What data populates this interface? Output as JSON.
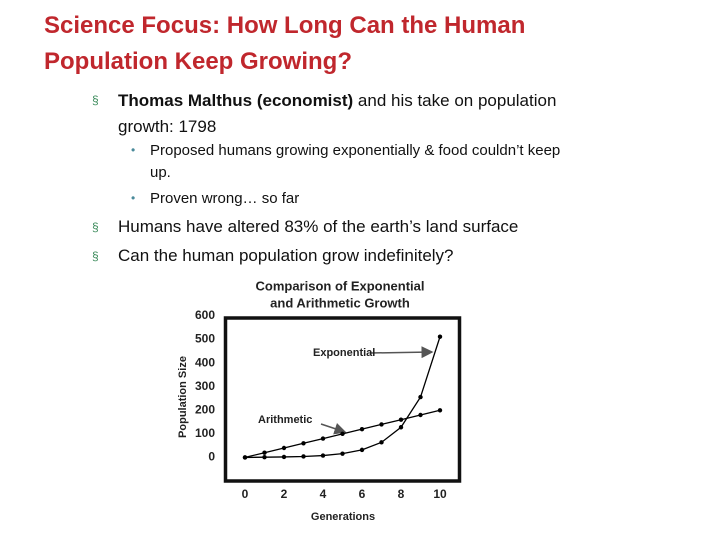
{
  "header": {
    "title": "Science Focus: How Long Can the Human Population Keep Growing?"
  },
  "bullets": [
    {
      "emphasis": "Thomas Malthus (economist)",
      "text": "and his take on population growth: 1798",
      "sub_bullets": [
        "Proposed humans growing exponentially & food couldn’t keep up.",
        "Proven wrong… so far"
      ]
    },
    {
      "text": "Humans have altered 83% of the earth’s land surface"
    },
    {
      "text": "Can the human population grow indefinitely?"
    }
  ],
  "chart_data": {
    "type": "line",
    "title": [
      "Comparison of Exponential",
      "and Arithmetic Growth"
    ],
    "x_label": "Generations",
    "y_label": "Population Size",
    "x": [
      0,
      1,
      2,
      3,
      4,
      5,
      6,
      7,
      8,
      9,
      10
    ],
    "series": [
      {
        "name": "Exponential",
        "color": "#000000",
        "values": [
          0,
          1,
          2,
          4,
          8,
          16,
          32,
          64,
          128,
          256,
          512
        ]
      },
      {
        "name": "Arithmetic",
        "color": "#000000",
        "values": [
          0,
          20,
          40,
          60,
          80,
          100,
          120,
          140,
          160,
          180,
          200
        ]
      }
    ],
    "xlim": [
      -1,
      11
    ],
    "xticks": [
      0,
      2,
      4,
      6,
      8,
      10
    ],
    "ylim": [
      -100,
      600
    ],
    "yticks": [
      0,
      100,
      200,
      300,
      400,
      500,
      600
    ]
  }
}
